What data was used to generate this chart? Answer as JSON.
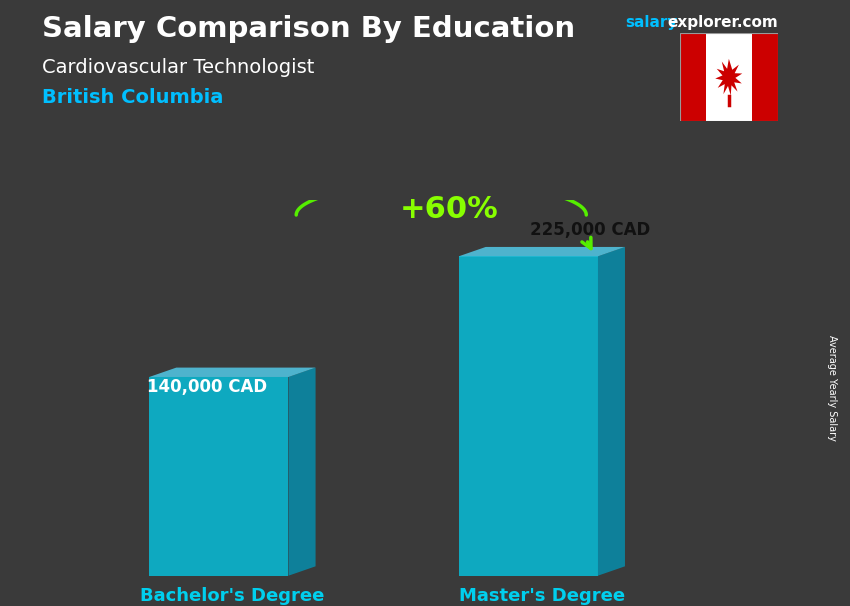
{
  "title": "Salary Comparison By Education",
  "subtitle": "Cardiovascular Technologist",
  "region": "British Columbia",
  "categories": [
    "Bachelor's Degree",
    "Master's Degree"
  ],
  "values": [
    140000,
    225000
  ],
  "labels": [
    "140,000 CAD",
    "225,000 CAD"
  ],
  "bar_color_face": "#00CFEE",
  "bar_color_side": "#0099BB",
  "bar_color_top": "#55DDFF",
  "bar_alpha": 0.75,
  "pct_change": "+60%",
  "ylabel": "Average Yearly Salary",
  "bg_color": "#3a3a3a",
  "title_color": "#FFFFFF",
  "subtitle_color": "#FFFFFF",
  "region_color": "#00BFFF",
  "label_color_bar1": "#FFFFFF",
  "label_color_bar2": "#FFFFFF",
  "category_color": "#00CFEE",
  "arrow_color": "#55EE00",
  "pct_color": "#88FF00",
  "website_salary_color": "#00BFFF",
  "website_rest_color": "#FFFFFF",
  "figsize": [
    8.5,
    6.06
  ],
  "dpi": 100
}
